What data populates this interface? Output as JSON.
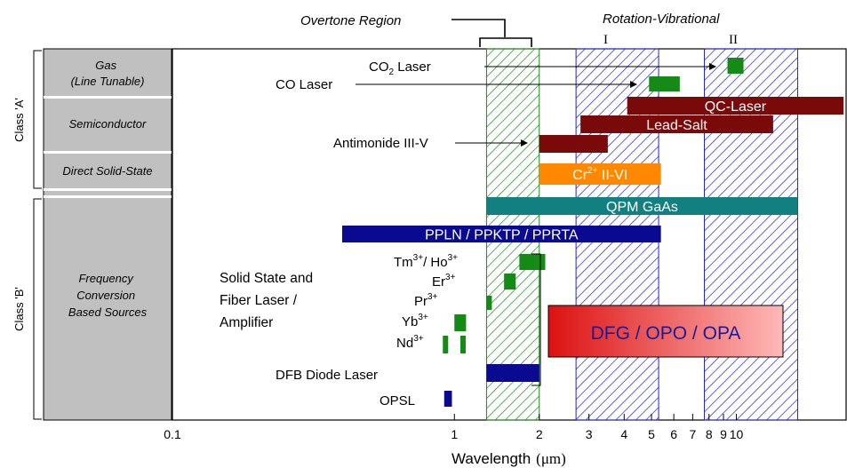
{
  "chart_data": {
    "type": "bar",
    "xlabel": "Wavelength",
    "xlabel_unit": "(μm)",
    "xscale": "log",
    "xlim": [
      0.1,
      20
    ],
    "x_ticks": [
      {
        "value": 0.1,
        "label": "0.1"
      },
      {
        "value": 1,
        "label": "1"
      },
      {
        "value": 2,
        "label": "2"
      },
      {
        "value": 3,
        "label": "3"
      },
      {
        "value": 4,
        "label": "4"
      },
      {
        "value": 5,
        "label": "5"
      },
      {
        "value": 6,
        "label": "6"
      },
      {
        "value": 7,
        "label": "7"
      },
      {
        "value": 8,
        "label": "8"
      },
      {
        "value": 9,
        "label": "9"
      },
      {
        "value": 10,
        "label": "10"
      }
    ],
    "classes": [
      {
        "label": "Class 'A'",
        "categories": [
          "Gas\n(Line Tunable)",
          "Semiconductor",
          "Direct Solid-State"
        ]
      },
      {
        "label": "Class 'B'",
        "categories": [
          "Frequency\nConversion\nBased Sources"
        ]
      }
    ],
    "regions": [
      {
        "label": "Overtone Region",
        "range": [
          1.3,
          2.0
        ],
        "color": "#1a8a1a"
      },
      {
        "label": "Rotation-Vibrational",
        "sublabel": "I",
        "range": [
          2.7,
          5.3
        ],
        "color": "#2222cc"
      },
      {
        "label": "",
        "sublabel": "II",
        "range": [
          7.7,
          16.5
        ],
        "color": "#2222cc"
      }
    ],
    "bars": [
      {
        "name": "CO2 Laser",
        "text": "CO",
        "sub": "2",
        "suffix": " Laser",
        "range": [
          9.3,
          10.6
        ],
        "color": "#168a16",
        "row": 0,
        "bar_label": "",
        "pointer": true
      },
      {
        "name": "CO Laser",
        "text": "CO Laser",
        "range": [
          4.9,
          6.3
        ],
        "color": "#168a16",
        "row": 1,
        "bar_label": "",
        "pointer": true
      },
      {
        "name": "QC-Laser",
        "range": [
          4.1,
          24
        ],
        "color": "#7a0a0a",
        "row": 2,
        "bar_label": "QC-Laser"
      },
      {
        "name": "Lead-Salt",
        "range": [
          2.8,
          13.5
        ],
        "color": "#7a0a0a",
        "row": 3,
        "bar_label": "Lead-Salt"
      },
      {
        "name": "Antimonide III-V",
        "text": "Antimonide III-V",
        "range": [
          2.0,
          3.5
        ],
        "color": "#7a0a0a",
        "row": 4,
        "bar_label": "",
        "pointer": true
      },
      {
        "name": "Cr2+ II-VI",
        "range": [
          2.0,
          5.4
        ],
        "color": "#ff8800",
        "row": 5,
        "bar_label": "Cr",
        "bar_label_sup": "2+",
        "bar_label_suffix": " II-VI"
      },
      {
        "name": "QPM GaAs",
        "range": [
          1.3,
          16.5
        ],
        "color": "#128080",
        "row": 6,
        "bar_label": "QPM GaAs"
      },
      {
        "name": "PPLN / PPKTP / PPRTA",
        "range": [
          0.4,
          5.4
        ],
        "color": "#0a0a90",
        "row": 7,
        "bar_label": "PPLN / PPKTP / PPRTA"
      },
      {
        "name": "Tm3+/Ho3+",
        "range": [
          1.7,
          2.1
        ],
        "color": "#168a16",
        "row": 8
      },
      {
        "name": "Er3+",
        "range": [
          1.5,
          1.65
        ],
        "color": "#168a16",
        "row": 9
      },
      {
        "name": "Pr3+",
        "range": [
          1.3,
          1.34
        ],
        "color": "#168a16",
        "row": 10
      },
      {
        "name": "Yb3+",
        "range": [
          1.0,
          1.1
        ],
        "color": "#168a16",
        "row": 11
      },
      {
        "name": "Nd3+ a",
        "range": [
          0.91,
          0.94
        ],
        "color": "#168a16",
        "row": 12
      },
      {
        "name": "Nd3+ b",
        "range": [
          1.05,
          1.07
        ],
        "color": "#168a16",
        "row": 12
      },
      {
        "name": "DFB Diode Laser",
        "range": [
          1.3,
          2.0
        ],
        "color": "#0a0a90",
        "row": 13
      },
      {
        "name": "OPSL",
        "range": [
          0.92,
          0.98
        ],
        "color": "#0a0a90",
        "row": 14
      }
    ],
    "labels": {
      "solid_state": [
        "Solid State and",
        "Fiber Laser /",
        "Amplifier"
      ],
      "ions": [
        {
          "base": "Tm",
          "sup": "3+",
          "mid": "/ Ho",
          "sup2": "3+"
        },
        {
          "base": "Er",
          "sup": "3+"
        },
        {
          "base": "Pr",
          "sup": "3+"
        },
        {
          "base": "Yb",
          "sup": "3+"
        },
        {
          "base": "Nd",
          "sup": "3+"
        }
      ],
      "dfb": "DFB Diode Laser",
      "opsl": "OPSL",
      "dfg": "DFG / OPO / OPA"
    }
  },
  "colors": {
    "sidebar_gray": "#c0c0c0",
    "overtone_hatch": "#1a8a1a",
    "rovib_hatch": "#2222cc",
    "dfg_gradient": [
      "#dd1111",
      "#ffb0b0"
    ]
  }
}
